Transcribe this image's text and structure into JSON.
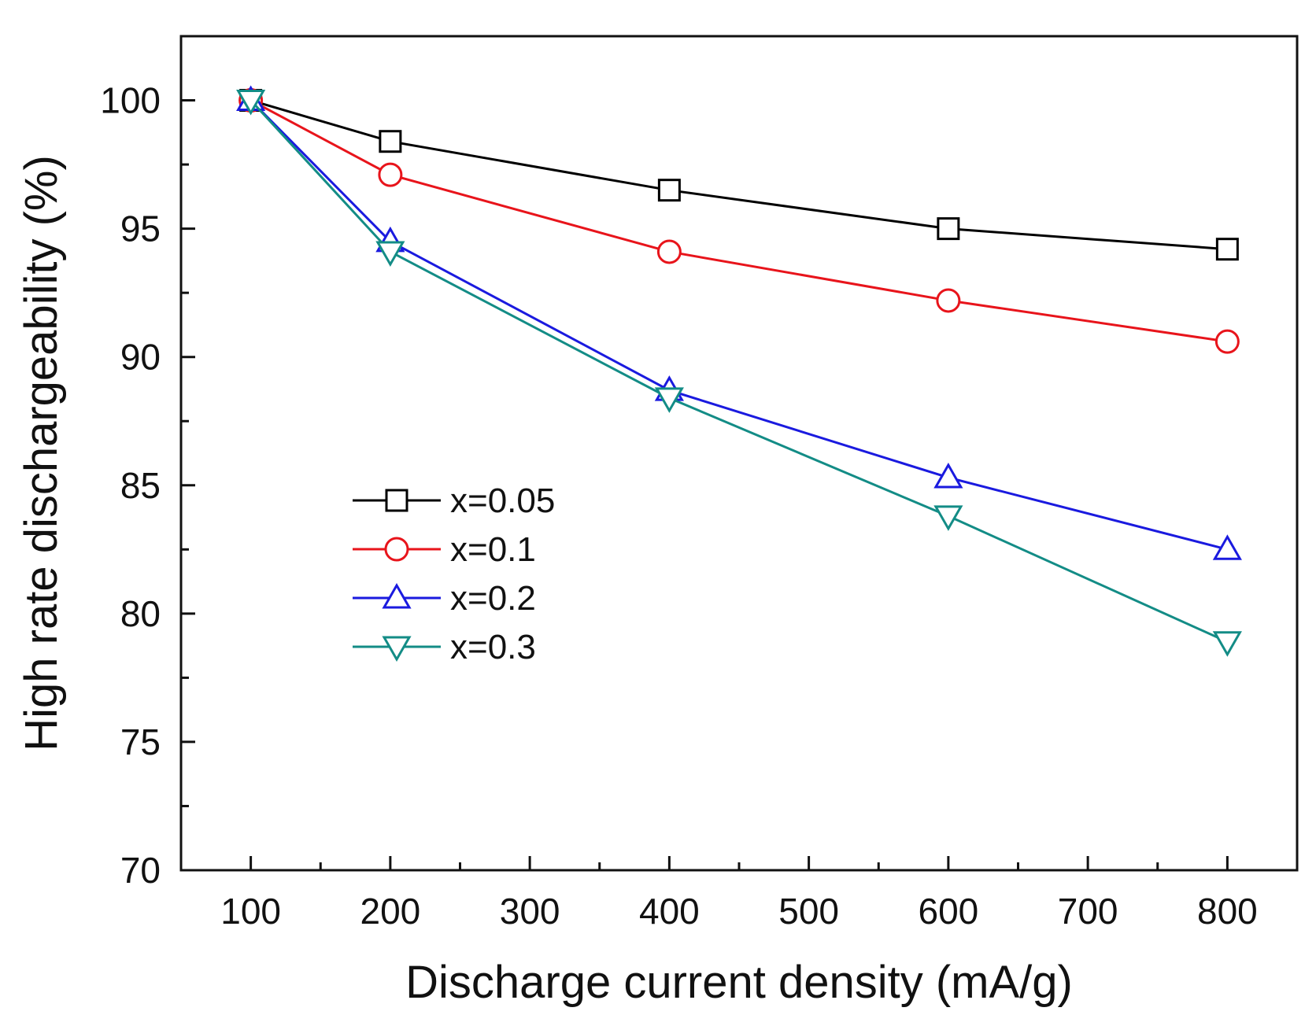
{
  "chart_data": {
    "type": "line",
    "title": "",
    "xlabel": "Discharge current density (mA/g)",
    "ylabel": "High rate dischargeability (%)",
    "xlim": [
      50,
      850
    ],
    "ylim": [
      70,
      102.5
    ],
    "xticks": [
      100,
      200,
      300,
      400,
      500,
      600,
      700,
      800
    ],
    "xtick_labels": [
      "100",
      "200",
      "300",
      "400",
      "500",
      "600",
      "700",
      "800"
    ],
    "yticks": [
      70,
      75,
      80,
      85,
      90,
      95,
      100
    ],
    "ytick_labels": [
      "70",
      "75",
      "80",
      "85",
      "90",
      "95",
      "100"
    ],
    "grid": false,
    "legend_position": "center-left",
    "x": [
      100,
      200,
      400,
      600,
      800
    ],
    "series": [
      {
        "name": "x=0.05",
        "color": "#000000",
        "marker": "square",
        "values": [
          100,
          98.4,
          96.5,
          95.0,
          94.2
        ]
      },
      {
        "name": "x=0.1",
        "color": "#e8141b",
        "marker": "circle",
        "values": [
          100,
          97.1,
          94.1,
          92.2,
          90.6
        ]
      },
      {
        "name": "x=0.2",
        "color": "#1a1adf",
        "marker": "triangle-up",
        "values": [
          100,
          94.5,
          88.7,
          85.3,
          82.5
        ]
      },
      {
        "name": "x=0.3",
        "color": "#138c86",
        "marker": "triangle-down",
        "values": [
          100,
          94.1,
          88.4,
          83.8,
          78.9
        ]
      }
    ]
  }
}
